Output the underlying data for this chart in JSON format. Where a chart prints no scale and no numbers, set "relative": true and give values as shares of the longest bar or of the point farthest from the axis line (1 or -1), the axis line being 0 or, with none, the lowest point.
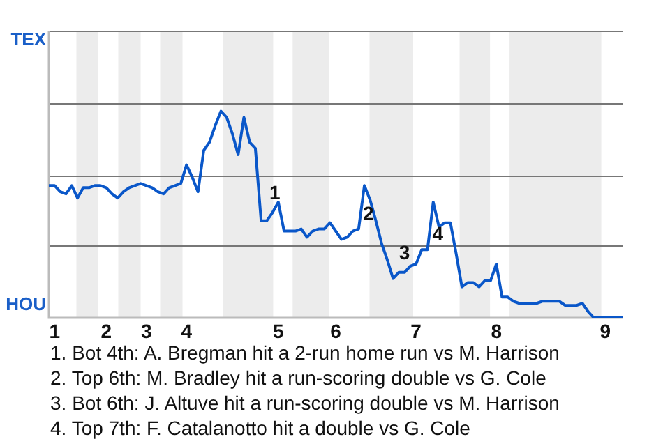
{
  "chart_data": {
    "type": "line",
    "relative": true,
    "categories": [
      null,
      "1",
      null,
      null,
      null,
      null,
      null,
      null,
      null,
      null,
      "2",
      null,
      null,
      null,
      null,
      null,
      null,
      "3",
      null,
      null,
      null,
      null,
      null,
      null,
      "4",
      null,
      null,
      null,
      null,
      null,
      null,
      null,
      null,
      null,
      null,
      null,
      null,
      null,
      null,
      null,
      "5",
      null,
      null,
      null,
      null,
      null,
      null,
      null,
      null,
      null,
      "6",
      null,
      null,
      null,
      null,
      null,
      null,
      null,
      null,
      null,
      null,
      null,
      null,
      null,
      "7",
      null,
      null,
      null,
      null,
      null,
      null,
      null,
      null,
      null,
      null,
      null,
      null,
      null,
      "8",
      null,
      null,
      null,
      null,
      null,
      null,
      null,
      null,
      null,
      null,
      null,
      null,
      null,
      null,
      null,
      null,
      null,
      null,
      "9",
      null,
      null,
      null
    ],
    "series": [
      {
        "color": "#0a57c9",
        "values": [
          0.64,
          0.64,
          0.61,
          0.6,
          0.64,
          0.58,
          0.63,
          0.63,
          0.64,
          0.64,
          0.63,
          0.6,
          0.58,
          0.61,
          0.63,
          0.64,
          0.65,
          0.64,
          0.63,
          0.61,
          0.6,
          0.63,
          0.64,
          0.65,
          0.74,
          0.68,
          0.61,
          0.81,
          0.85,
          0.93,
          1,
          0.97,
          0.89,
          0.79,
          0.97,
          0.85,
          0.82,
          0.47,
          0.47,
          0.51,
          0.56,
          0.42,
          0.42,
          0.42,
          0.43,
          0.39,
          0.42,
          0.43,
          0.43,
          0.46,
          0.42,
          0.38,
          0.39,
          0.42,
          0.43,
          0.64,
          0.57,
          0.47,
          0.36,
          0.28,
          0.19,
          0.22,
          0.22,
          0.25,
          0.26,
          0.33,
          0.33,
          0.56,
          0.44,
          0.46,
          0.46,
          0.31,
          0.15,
          0.17,
          0.17,
          0.15,
          0.18,
          0.18,
          0.26,
          0.1,
          0.1,
          0.08,
          0.07,
          0.07,
          0.07,
          0.07,
          0.08,
          0.08,
          0.08,
          0.08,
          0.06,
          0.06,
          0.06,
          0.07,
          0.03,
          0,
          0,
          0,
          0,
          0,
          0
        ]
      }
    ],
    "ref_lines": [
      {
        "axis": "y",
        "value": 0.35,
        "color": "#777777"
      },
      {
        "axis": "y",
        "value": 0.69,
        "color": "#777777"
      },
      {
        "axis": "y",
        "value": 1.04,
        "color": "#777777"
      },
      {
        "axis": "y",
        "value": 1.39,
        "color": "#777777"
      }
    ],
    "marker": "none",
    "line_style": "solid",
    "annotations": [
      "TEX",
      "HOU",
      "1",
      "2",
      "3",
      "4",
      "1. Bot 4th: A. Bregman hit a 2-run home run vs M. Harrison",
      "2. Top 6th: M. Bradley hit a run-scoring double vs G. Cole",
      "3. Bot 6th: J. Altuve hit a run-scoring double vs M. Harrison",
      "4. Top 7th: F. Catalanotto hit a double vs G. Cole"
    ]
  }
}
